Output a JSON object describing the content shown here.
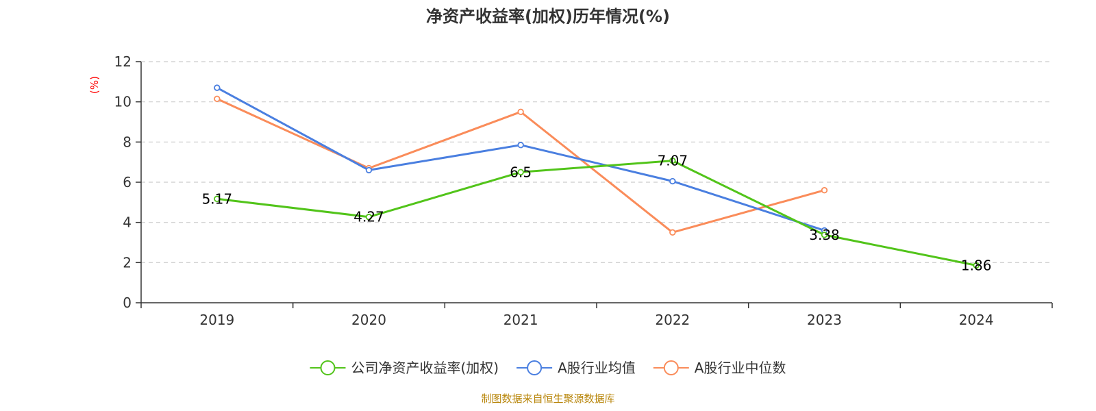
{
  "chart_data": {
    "type": "line",
    "title": "净资产收益率(加权)历年情况(%)",
    "ylabel": "(%)",
    "ylabel_color": "#ff0000",
    "ylim": [
      0,
      12
    ],
    "yticks": [
      0,
      2,
      4,
      6,
      8,
      10,
      12
    ],
    "categories": [
      "2019",
      "2020",
      "2021",
      "2022",
      "2023",
      "2024"
    ],
    "grid": "horizontal dashed",
    "legend_position": "bottom",
    "series": [
      {
        "name": "公司净资产收益率(加权)",
        "color": "#52c41a",
        "values": [
          5.17,
          4.27,
          6.5,
          7.07,
          3.38,
          1.86
        ],
        "labels": [
          "5.17",
          "4.27",
          "6.5",
          "7.07",
          "3.38",
          "1.86"
        ]
      },
      {
        "name": "A股行业均值",
        "color": "#4a7fe0",
        "values": [
          10.7,
          6.6,
          7.85,
          6.05,
          3.6,
          null
        ]
      },
      {
        "name": "A股行业中位数",
        "color": "#fa8c5a",
        "values": [
          10.15,
          6.7,
          9.5,
          3.5,
          5.6,
          null
        ]
      }
    ]
  },
  "footer": {
    "source": "制图数据来自恒生聚源数据库",
    "source_color": "#b8860b"
  }
}
